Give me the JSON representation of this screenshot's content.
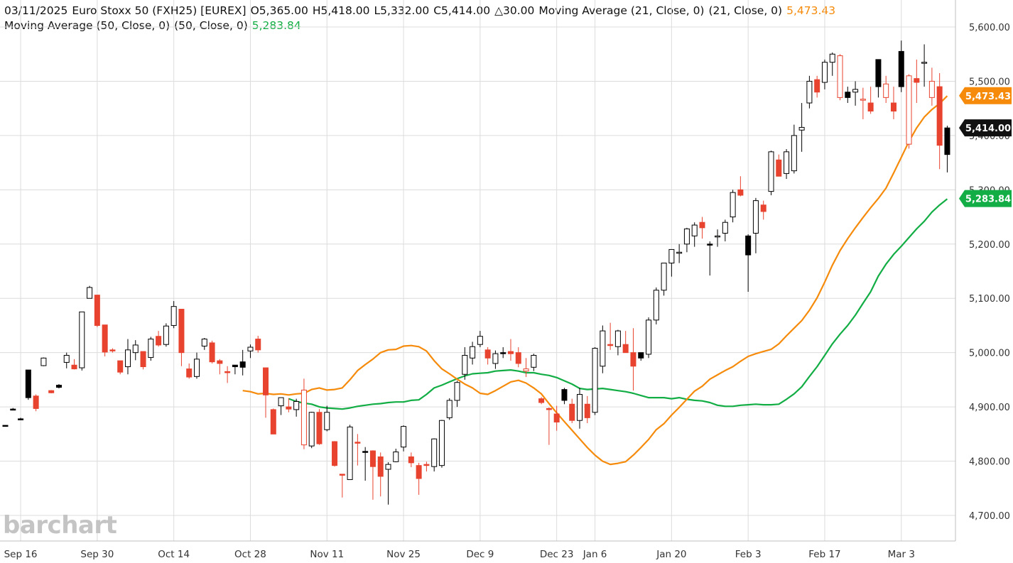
{
  "header": {
    "date": "03/11/2025",
    "symbol": "Euro Stoxx 50 (FXH25) [EUREX]",
    "open": "O5,365.00",
    "high": "H5,418.00",
    "low": "L5,332.00",
    "close": "C5,414.00",
    "change": "△30.00",
    "ma21_label": "Moving Average (21, Close, 0)",
    "ma21_params": "(21, Close, 0)",
    "ma21_value": "5,473.43",
    "ma50_label": "Moving Average (50, Close, 0)",
    "ma50_params": "(50, Close, 0)",
    "ma50_value": "5,283.84"
  },
  "logo": "barchart",
  "colors": {
    "up": "#000000",
    "down": "#e8432e",
    "ma21": "#f58a0b",
    "ma50": "#12ad44",
    "grid": "#dcdcdc"
  },
  "chart_data": {
    "type": "candlestick",
    "ylim": [
      4660,
      5630
    ],
    "y_ticks": [
      {
        "value": 5600,
        "label": "5,600.00"
      },
      {
        "value": 5500,
        "label": "5,500.00"
      },
      {
        "value": 5400,
        "label": "5,400.00"
      },
      {
        "value": 5300,
        "label": "5,300.00"
      },
      {
        "value": 5200,
        "label": "5,200.00"
      },
      {
        "value": 5100,
        "label": "5,100.00"
      },
      {
        "value": 5000,
        "label": "5,000.00"
      },
      {
        "value": 4900,
        "label": "4,900.00"
      },
      {
        "value": 4800,
        "label": "4,800.00"
      },
      {
        "value": 4700,
        "label": "4,700.00"
      }
    ],
    "x_labels": [
      {
        "label": "Sep 16",
        "index": 2
      },
      {
        "label": "Sep 30",
        "index": 12
      },
      {
        "label": "Oct 14",
        "index": 22
      },
      {
        "label": "Oct 28",
        "index": 32
      },
      {
        "label": "Nov 11",
        "index": 42
      },
      {
        "label": "Nov 25",
        "index": 52
      },
      {
        "label": "Dec 9",
        "index": 62
      },
      {
        "label": "Dec 23",
        "index": 72
      },
      {
        "label": "Jan 6",
        "index": 77
      },
      {
        "label": "Jan 20",
        "index": 87
      },
      {
        "label": "Feb 3",
        "index": 97
      },
      {
        "label": "Feb 17",
        "index": 107
      },
      {
        "label": "Mar 3",
        "index": 117
      }
    ],
    "price_labels": [
      {
        "name": "MA 21",
        "value": 5473.43,
        "label": "5,473.43",
        "color": "#f58a0b"
      },
      {
        "name": "Last",
        "value": 5414.0,
        "label": "5,414.00",
        "color": "#111111"
      },
      {
        "name": "MA 50",
        "value": 5283.84,
        "label": "5,283.84",
        "color": "#12ad44"
      }
    ],
    "candles": [
      {
        "o": 4866,
        "h": 4866,
        "l": 4866,
        "c": 4866
      },
      {
        "o": 4896,
        "h": 4898,
        "l": 4894,
        "c": 4896
      },
      {
        "o": 4878,
        "h": 4880,
        "l": 4876,
        "c": 4878
      },
      {
        "o": 4917,
        "h": 4968,
        "l": 4913,
        "c": 4968
      },
      {
        "o": 4920,
        "h": 4923,
        "l": 4892,
        "c": 4897
      },
      {
        "o": 4976,
        "h": 4991,
        "l": 4975,
        "c": 4990
      },
      {
        "o": 4930,
        "h": 4931,
        "l": 4925,
        "c": 4926
      },
      {
        "o": 4936,
        "h": 4942,
        "l": 4934,
        "c": 4940
      },
      {
        "o": 4982,
        "h": 5000,
        "l": 4971,
        "c": 4995
      },
      {
        "o": 4977,
        "h": 4988,
        "l": 4969,
        "c": 4970
      },
      {
        "o": 4972,
        "h": 5075,
        "l": 4967,
        "c": 5075
      },
      {
        "o": 5100,
        "h": 5123,
        "l": 5100,
        "c": 5120
      },
      {
        "o": 5106,
        "h": 5106,
        "l": 5047,
        "c": 5050
      },
      {
        "o": 5051,
        "h": 5051,
        "l": 4993,
        "c": 5001
      },
      {
        "o": 5005,
        "h": 5008,
        "l": 5000,
        "c": 5004
      },
      {
        "o": 4985,
        "h": 4985,
        "l": 4960,
        "c": 4964
      },
      {
        "o": 4974,
        "h": 5025,
        "l": 4960,
        "c": 5005
      },
      {
        "o": 5000,
        "h": 5023,
        "l": 4986,
        "c": 5014
      },
      {
        "o": 5002,
        "h": 5002,
        "l": 4969,
        "c": 4974
      },
      {
        "o": 4991,
        "h": 5029,
        "l": 4985,
        "c": 5025
      },
      {
        "o": 5030,
        "h": 5040,
        "l": 5011,
        "c": 5014
      },
      {
        "o": 5015,
        "h": 5054,
        "l": 5011,
        "c": 5049
      },
      {
        "o": 5050,
        "h": 5095,
        "l": 5045,
        "c": 5085
      },
      {
        "o": 5080,
        "h": 5080,
        "l": 4975,
        "c": 5000
      },
      {
        "o": 4970,
        "h": 4980,
        "l": 4952,
        "c": 4955
      },
      {
        "o": 4956,
        "h": 5000,
        "l": 4952,
        "c": 4988
      },
      {
        "o": 5012,
        "h": 5027,
        "l": 5005,
        "c": 5025
      },
      {
        "o": 5018,
        "h": 5022,
        "l": 4980,
        "c": 4983
      },
      {
        "o": 4985,
        "h": 4988,
        "l": 4960,
        "c": 4980
      },
      {
        "o": 4965,
        "h": 4975,
        "l": 4944,
        "c": 4963
      },
      {
        "o": 4974,
        "h": 4977,
        "l": 4960,
        "c": 4977
      },
      {
        "o": 4973,
        "h": 5005,
        "l": 4958,
        "c": 4983
      },
      {
        "o": 5003,
        "h": 5015,
        "l": 4990,
        "c": 5010
      },
      {
        "o": 5025,
        "h": 5031,
        "l": 5000,
        "c": 5005
      },
      {
        "o": 4972,
        "h": 4972,
        "l": 4880,
        "c": 4922
      },
      {
        "o": 4895,
        "h": 4897,
        "l": 4850,
        "c": 4850
      },
      {
        "o": 4902,
        "h": 4916,
        "l": 4885,
        "c": 4917
      },
      {
        "o": 4900,
        "h": 4916,
        "l": 4890,
        "c": 4896
      },
      {
        "o": 4895,
        "h": 4915,
        "l": 4882,
        "c": 4910
      },
      {
        "o": 4931,
        "h": 4952,
        "l": 4822,
        "c": 4830
      },
      {
        "o": 4828,
        "h": 4891,
        "l": 4824,
        "c": 4890
      },
      {
        "o": 4890,
        "h": 4896,
        "l": 4830,
        "c": 4832
      },
      {
        "o": 4858,
        "h": 4902,
        "l": 4855,
        "c": 4890
      },
      {
        "o": 4836,
        "h": 4837,
        "l": 4790,
        "c": 4792
      },
      {
        "o": 4776,
        "h": 4776,
        "l": 4733,
        "c": 4774
      },
      {
        "o": 4766,
        "h": 4867,
        "l": 4766,
        "c": 4863
      },
      {
        "o": 4835,
        "h": 4850,
        "l": 4792,
        "c": 4834
      },
      {
        "o": 4818,
        "h": 4826,
        "l": 4764,
        "c": 4818
      },
      {
        "o": 4819,
        "h": 4820,
        "l": 4729,
        "c": 4790
      },
      {
        "o": 4808,
        "h": 4816,
        "l": 4735,
        "c": 4772
      },
      {
        "o": 4785,
        "h": 4798,
        "l": 4720,
        "c": 4794
      },
      {
        "o": 4799,
        "h": 4823,
        "l": 4798,
        "c": 4817
      },
      {
        "o": 4826,
        "h": 4866,
        "l": 4818,
        "c": 4864
      },
      {
        "o": 4808,
        "h": 4816,
        "l": 4789,
        "c": 4797
      },
      {
        "o": 4792,
        "h": 4797,
        "l": 4738,
        "c": 4768
      },
      {
        "o": 4794,
        "h": 4799,
        "l": 4781,
        "c": 4792
      },
      {
        "o": 4790,
        "h": 4842,
        "l": 4781,
        "c": 4841
      },
      {
        "o": 4792,
        "h": 4876,
        "l": 4788,
        "c": 4875
      },
      {
        "o": 4880,
        "h": 4916,
        "l": 4876,
        "c": 4912
      },
      {
        "o": 4912,
        "h": 4948,
        "l": 4900,
        "c": 4945
      },
      {
        "o": 4960,
        "h": 5010,
        "l": 4950,
        "c": 4995
      },
      {
        "o": 4990,
        "h": 5020,
        "l": 4978,
        "c": 5011
      },
      {
        "o": 5015,
        "h": 5040,
        "l": 5010,
        "c": 5030
      },
      {
        "o": 5005,
        "h": 5010,
        "l": 4978,
        "c": 4990
      },
      {
        "o": 4980,
        "h": 5004,
        "l": 4970,
        "c": 4998
      },
      {
        "o": 4998,
        "h": 5010,
        "l": 4990,
        "c": 5000
      },
      {
        "o": 5002,
        "h": 5025,
        "l": 4985,
        "c": 4998
      },
      {
        "o": 5000,
        "h": 5010,
        "l": 4973,
        "c": 4980
      },
      {
        "o": 4970,
        "h": 4990,
        "l": 4955,
        "c": 4966
      },
      {
        "o": 4973,
        "h": 4998,
        "l": 4966,
        "c": 4995
      },
      {
        "o": 4915,
        "h": 4918,
        "l": 4905,
        "c": 4908
      },
      {
        "o": 4897,
        "h": 4899,
        "l": 4830,
        "c": 4895
      },
      {
        "o": 4887,
        "h": 4902,
        "l": 4856,
        "c": 4872
      },
      {
        "o": 4912,
        "h": 4935,
        "l": 4905,
        "c": 4932
      },
      {
        "o": 4905,
        "h": 4915,
        "l": 4870,
        "c": 4875
      },
      {
        "o": 4875,
        "h": 4935,
        "l": 4860,
        "c": 4923
      },
      {
        "o": 4905,
        "h": 4920,
        "l": 4870,
        "c": 4880
      },
      {
        "o": 4890,
        "h": 5010,
        "l": 4885,
        "c": 5008
      },
      {
        "o": 4975,
        "h": 5050,
        "l": 4962,
        "c": 5040
      },
      {
        "o": 5015,
        "h": 5055,
        "l": 5005,
        "c": 5013
      },
      {
        "o": 5011,
        "h": 5042,
        "l": 4995,
        "c": 5040
      },
      {
        "o": 5015,
        "h": 5040,
        "l": 5003,
        "c": 5000
      },
      {
        "o": 5000,
        "h": 5045,
        "l": 4930,
        "c": 4975
      },
      {
        "o": 4990,
        "h": 5000,
        "l": 4985,
        "c": 5000
      },
      {
        "o": 4997,
        "h": 5065,
        "l": 4990,
        "c": 5060
      },
      {
        "o": 5060,
        "h": 5120,
        "l": 5052,
        "c": 5115
      },
      {
        "o": 5115,
        "h": 5165,
        "l": 5105,
        "c": 5165
      },
      {
        "o": 5165,
        "h": 5190,
        "l": 5140,
        "c": 5190
      },
      {
        "o": 5185,
        "h": 5200,
        "l": 5165,
        "c": 5185
      },
      {
        "o": 5200,
        "h": 5230,
        "l": 5185,
        "c": 5228
      },
      {
        "o": 5215,
        "h": 5240,
        "l": 5195,
        "c": 5235
      },
      {
        "o": 5240,
        "h": 5250,
        "l": 5210,
        "c": 5230
      },
      {
        "o": 5198,
        "h": 5205,
        "l": 5142,
        "c": 5200
      },
      {
        "o": 5215,
        "h": 5227,
        "l": 5195,
        "c": 5215
      },
      {
        "o": 5220,
        "h": 5245,
        "l": 5205,
        "c": 5240
      },
      {
        "o": 5250,
        "h": 5300,
        "l": 5240,
        "c": 5295
      },
      {
        "o": 5300,
        "h": 5325,
        "l": 5288,
        "c": 5290
      },
      {
        "o": 5180,
        "h": 5218,
        "l": 5112,
        "c": 5215
      },
      {
        "o": 5220,
        "h": 5285,
        "l": 5183,
        "c": 5280
      },
      {
        "o": 5272,
        "h": 5280,
        "l": 5245,
        "c": 5260
      },
      {
        "o": 5297,
        "h": 5372,
        "l": 5290,
        "c": 5370
      },
      {
        "o": 5355,
        "h": 5365,
        "l": 5325,
        "c": 5325
      },
      {
        "o": 5330,
        "h": 5375,
        "l": 5320,
        "c": 5370
      },
      {
        "o": 5335,
        "h": 5420,
        "l": 5330,
        "c": 5400
      },
      {
        "o": 5410,
        "h": 5460,
        "l": 5370,
        "c": 5415
      },
      {
        "o": 5460,
        "h": 5510,
        "l": 5450,
        "c": 5500
      },
      {
        "o": 5503,
        "h": 5510,
        "l": 5470,
        "c": 5480
      },
      {
        "o": 5498,
        "h": 5540,
        "l": 5485,
        "c": 5535
      },
      {
        "o": 5535,
        "h": 5553,
        "l": 5510,
        "c": 5550
      },
      {
        "o": 5547,
        "h": 5550,
        "l": 5465,
        "c": 5470
      },
      {
        "o": 5470,
        "h": 5490,
        "l": 5460,
        "c": 5480
      },
      {
        "o": 5480,
        "h": 5500,
        "l": 5455,
        "c": 5485
      },
      {
        "o": 5467,
        "h": 5488,
        "l": 5430,
        "c": 5465
      },
      {
        "o": 5460,
        "h": 5490,
        "l": 5440,
        "c": 5445
      },
      {
        "o": 5490,
        "h": 5540,
        "l": 5470,
        "c": 5540
      },
      {
        "o": 5495,
        "h": 5510,
        "l": 5460,
        "c": 5470
      },
      {
        "o": 5460,
        "h": 5490,
        "l": 5430,
        "c": 5445
      },
      {
        "o": 5490,
        "h": 5575,
        "l": 5480,
        "c": 5555
      },
      {
        "o": 5510,
        "h": 5513,
        "l": 5376,
        "c": 5384
      },
      {
        "o": 5505,
        "h": 5540,
        "l": 5460,
        "c": 5498
      },
      {
        "o": 5535,
        "h": 5568,
        "l": 5490,
        "c": 5535
      },
      {
        "o": 5500,
        "h": 5525,
        "l": 5455,
        "c": 5470
      },
      {
        "o": 5490,
        "h": 5515,
        "l": 5338,
        "c": 5382
      },
      {
        "o": 5365,
        "h": 5418,
        "l": 5332,
        "c": 5414
      }
    ],
    "hollow_up": [
      false,
      false,
      false,
      false,
      false,
      true,
      false,
      false,
      true,
      false,
      true,
      true,
      false,
      false,
      false,
      false,
      true,
      true,
      false,
      true,
      false,
      true,
      true,
      false,
      false,
      true,
      true,
      false,
      false,
      false,
      false,
      false,
      true,
      false,
      false,
      false,
      true,
      false,
      true,
      true,
      true,
      false,
      true,
      false,
      false,
      true,
      false,
      false,
      false,
      false,
      true,
      true,
      true,
      false,
      false,
      false,
      true,
      true,
      true,
      true,
      true,
      true,
      true,
      false,
      true,
      false,
      false,
      false,
      true,
      true,
      false,
      false,
      false,
      false,
      false,
      true,
      false,
      true,
      true,
      false,
      true,
      false,
      false,
      false,
      true,
      true,
      true,
      true,
      true,
      true,
      true,
      false,
      false,
      true,
      true,
      true,
      false,
      false,
      true,
      false,
      true,
      false,
      true,
      true,
      true,
      true,
      false,
      true,
      true,
      true,
      false,
      true,
      true,
      false,
      false,
      true,
      false,
      false,
      true,
      false,
      true,
      true,
      false,
      false,
      true
    ],
    "ma21": [
      4930,
      4928,
      4924,
      4925,
      4923,
      4924,
      4922,
      4924,
      4925,
      4932,
      4935,
      4931,
      4932,
      4935,
      4950,
      4967,
      4978,
      4988,
      5000,
      5005,
      5006,
      5012,
      5013,
      5011,
      5003,
      4985,
      4970,
      4961,
      4951,
      4942,
      4935,
      4925,
      4923,
      4930,
      4938,
      4946,
      4949,
      4944,
      4935,
      4924,
      4906,
      4889,
      4873,
      4857,
      4841,
      4825,
      4811,
      4800,
      4794,
      4796,
      4799,
      4811,
      4825,
      4840,
      4858,
      4869,
      4885,
      4899,
      4914,
      4929,
      4938,
      4951,
      4959,
      4967,
      4974,
      4984,
      4993,
      4998,
      5002,
      5006,
      5016,
      5031,
      5045,
      5059,
      5078,
      5101,
      5130,
      5161,
      5188,
      5210,
      5230,
      5249,
      5267,
      5284,
      5303,
      5331,
      5360,
      5389,
      5414,
      5434,
      5448,
      5459,
      5473
    ],
    "ma50": [
      4915,
      4910,
      4907,
      4905,
      4900,
      4898,
      4897,
      4896,
      4898,
      4901,
      4903,
      4905,
      4906,
      4908,
      4909,
      4909,
      4912,
      4913,
      4923,
      4935,
      4940,
      4946,
      4952,
      4957,
      4961,
      4962,
      4963,
      4966,
      4967,
      4968,
      4966,
      4963,
      4963,
      4960,
      4958,
      4954,
      4948,
      4942,
      4934,
      4932,
      4933,
      4934,
      4932,
      4930,
      4928,
      4925,
      4921,
      4917,
      4917,
      4917,
      4915,
      4917,
      4914,
      4912,
      4911,
      4908,
      4903,
      4901,
      4901,
      4903,
      4904,
      4905,
      4904,
      4904,
      4905,
      4914,
      4924,
      4937,
      4956,
      4974,
      4995,
      5016,
      5034,
      5050,
      5069,
      5091,
      5112,
      5141,
      5163,
      5181,
      5196,
      5212,
      5228,
      5242,
      5259,
      5272,
      5283
    ]
  }
}
